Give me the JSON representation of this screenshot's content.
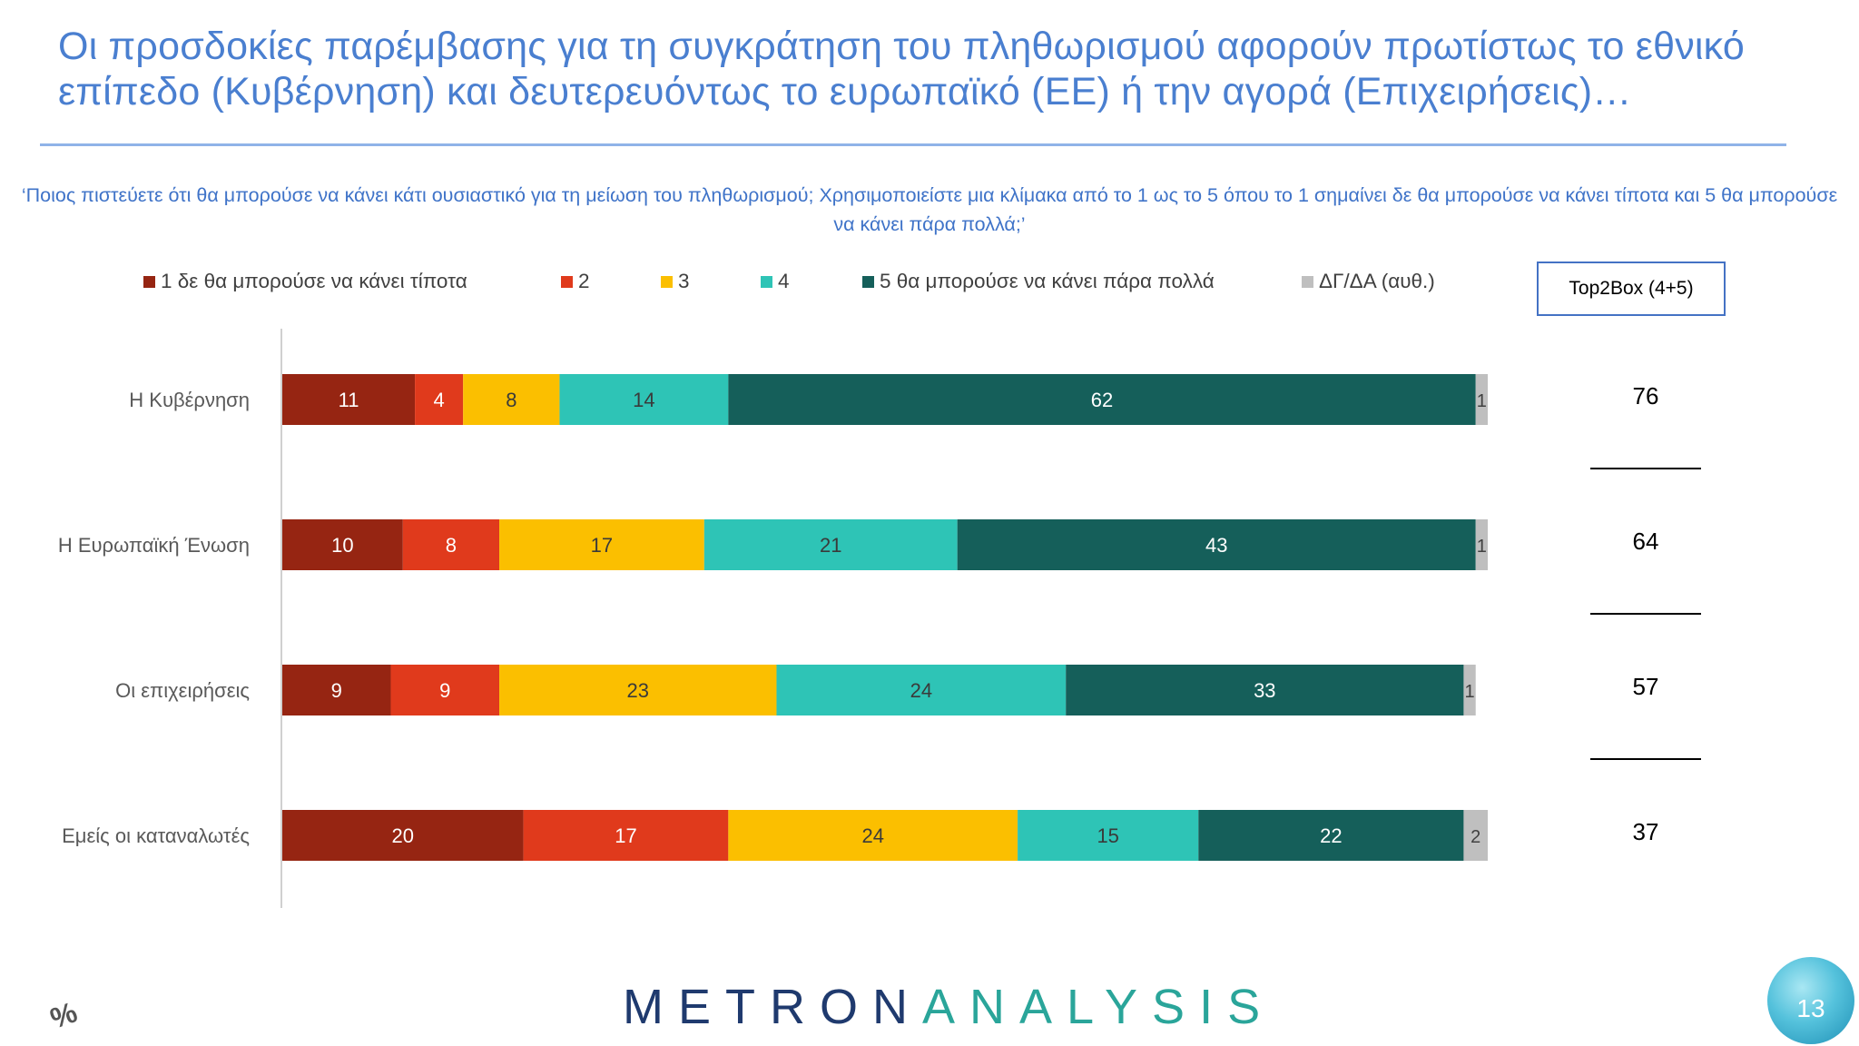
{
  "slide": {
    "title": "Οι προσδοκίες παρέμβασης για τη συγκράτηση του πληθωρισμού αφορούν πρωτίστως το εθνικό επίπεδο (Κυβέρνηση) και δευτερευόντως το ευρωπαϊκό (ΕΕ) ή την αγορά (Επιχειρήσεις)…",
    "question": "‘Ποιος πιστεύετε ότι θα μπορούσε να κάνει κάτι ουσιαστικό για τη μείωση του πληθωρισμού; Χρησιμοποιείστε μια κλίμακα από το 1 ως το 5 όπου το 1 σημαίνει δε θα μπορούσε να κάνει τίποτα και 5 θα μπορούσε να κάνει πάρα πολλά;’",
    "top2box_label": "Top2Box (4+5)",
    "percent_icon": "%",
    "logo_part1": "METRON",
    "logo_part2": "ANALYSIS",
    "page_number": "13"
  },
  "chart_data": {
    "type": "bar",
    "orientation": "horizontal",
    "stacked": true,
    "categories": [
      "Η Κυβέρνηση",
      "Η Ευρωπαϊκή Ένωση",
      "Οι επιχειρήσεις",
      "Εμείς οι καταναλωτές"
    ],
    "series": [
      {
        "name": "1  δε θα μπορούσε να κάνει τίποτα",
        "color": "#962512",
        "values": [
          11,
          10,
          9,
          20
        ]
      },
      {
        "name": "2",
        "color": "#e03a1c",
        "values": [
          4,
          8,
          9,
          17
        ]
      },
      {
        "name": "3",
        "color": "#fbbf00",
        "values": [
          8,
          17,
          23,
          24
        ]
      },
      {
        "name": "4",
        "color": "#2ec4b6",
        "values": [
          14,
          21,
          24,
          15
        ]
      },
      {
        "name": "5 θα μπορούσε να κάνει πάρα πολλά",
        "color": "#155f5a",
        "values": [
          62,
          43,
          33,
          22
        ]
      },
      {
        "name": "ΔΓ/ΔΑ (αυθ.)",
        "color": "#bfbfbf",
        "values": [
          1,
          1,
          1,
          2
        ]
      }
    ],
    "top2box": [
      76,
      64,
      57,
      37
    ],
    "legend_position": "top",
    "grid": false
  }
}
